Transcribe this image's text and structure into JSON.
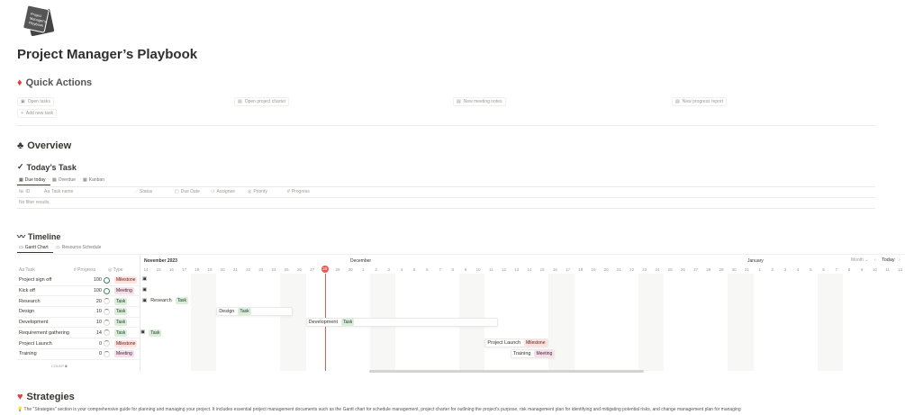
{
  "page": {
    "title": "Project Manager’s Playbook",
    "logo_text": "Project Manager's Playbook"
  },
  "quick_actions": {
    "heading": "Quick Actions",
    "icon": "diamond-icon",
    "buttons": [
      {
        "label": "Open tasks",
        "icon": "lock-icon"
      },
      {
        "label": "Open project charter",
        "icon": "document-icon"
      },
      {
        "label": "New meeting notes",
        "icon": "document-icon"
      },
      {
        "label": "New progress report",
        "icon": "document-icon"
      }
    ],
    "add_label": "Add new task"
  },
  "overview": {
    "heading": "Overview",
    "icon": "club-icon"
  },
  "todays_task": {
    "heading": "Today’s Task",
    "icon": "check-icon",
    "tabs": [
      "Due today",
      "Overdue",
      "Kanban"
    ],
    "columns": [
      "ID",
      "Task name",
      "Status",
      "Due Date",
      "Assignee",
      "Priority",
      "Progress"
    ],
    "empty": "No filter results."
  },
  "timeline": {
    "heading": "Timeline",
    "icon": "wave-icon",
    "tabs": [
      "Gantt Chart",
      "Resource Schedule"
    ],
    "columns": [
      "Task",
      "Progress",
      "Type"
    ],
    "months": [
      "November 2023",
      "December",
      "January"
    ],
    "view": "Month",
    "today_label": "Today",
    "today_date": "2023-11-28",
    "count_label": "COUNT",
    "count": "8",
    "start": "2023-11-14",
    "end": "2024-01-12",
    "rows": [
      {
        "name": "Project sign off",
        "progress": "100",
        "type": "Milestone"
      },
      {
        "name": "Kick off",
        "progress": "100",
        "type": "Meeting"
      },
      {
        "name": "Research",
        "progress": "20",
        "type": "Task",
        "bar_start": "2023-11-14",
        "bar_end": "2023-11-14"
      },
      {
        "name": "Design",
        "progress": "10",
        "type": "Task",
        "bar_start": "2023-11-20",
        "bar_end": "2023-11-25"
      },
      {
        "name": "Development",
        "progress": "10",
        "type": "Task",
        "bar_start": "2023-11-27",
        "bar_end": "2023-12-11"
      },
      {
        "name": "Requirement gathering",
        "progress": "14",
        "type": "Task"
      },
      {
        "name": "Project Launch",
        "progress": "0",
        "type": "Milestone",
        "bar_start": "2023-12-11",
        "bar_end": "2023-12-12"
      },
      {
        "name": "Training",
        "progress": "0",
        "type": "Meeting",
        "bar_start": "2023-12-13",
        "bar_end": "2023-12-14"
      }
    ]
  },
  "strategies": {
    "heading": "Strategies",
    "icon": "heart-icon",
    "callout_icon": "lightbulb-icon",
    "text": "The \"Strategies\" section is your comprehensive guide for planning and managing your project. It includes essential project management documents such as the Gantt chart for schedule management, project charter for outlining the project's purpose, risk management plan for identifying and mitigating potential risks, and change management plan for managing"
  },
  "colors": {
    "accent": "#eb5757",
    "task": "#dbeddb",
    "milestone": "#ffe2dd",
    "meeting": "#f5e0e9"
  }
}
